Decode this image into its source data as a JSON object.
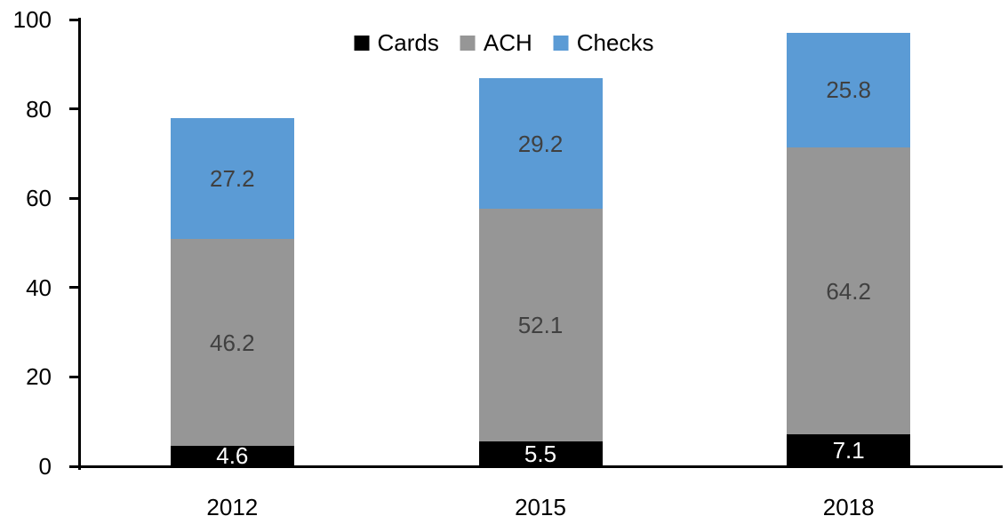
{
  "chart_data": {
    "type": "bar",
    "stacked": true,
    "title": "",
    "xlabel": "",
    "ylabel": "",
    "categories": [
      "2012",
      "2015",
      "2018"
    ],
    "series": [
      {
        "name": "Cards",
        "values": [
          4.6,
          5.5,
          7.1
        ],
        "color": "#000000",
        "label_color": "#ffffff"
      },
      {
        "name": "ACH",
        "values": [
          46.2,
          52.1,
          64.2
        ],
        "color": "#969696",
        "label_color": "#404040"
      },
      {
        "name": "Checks",
        "values": [
          27.2,
          29.2,
          25.8
        ],
        "color": "#5B9BD5",
        "label_color": "#404040"
      }
    ],
    "totals": [
      78.0,
      86.8,
      97.1
    ],
    "ylim": [
      0,
      100
    ],
    "yticks": [
      0,
      20,
      40,
      60,
      80,
      100
    ],
    "grid": false,
    "legend_position": "top-center",
    "axis_color": "#000000",
    "background": "#ffffff"
  }
}
